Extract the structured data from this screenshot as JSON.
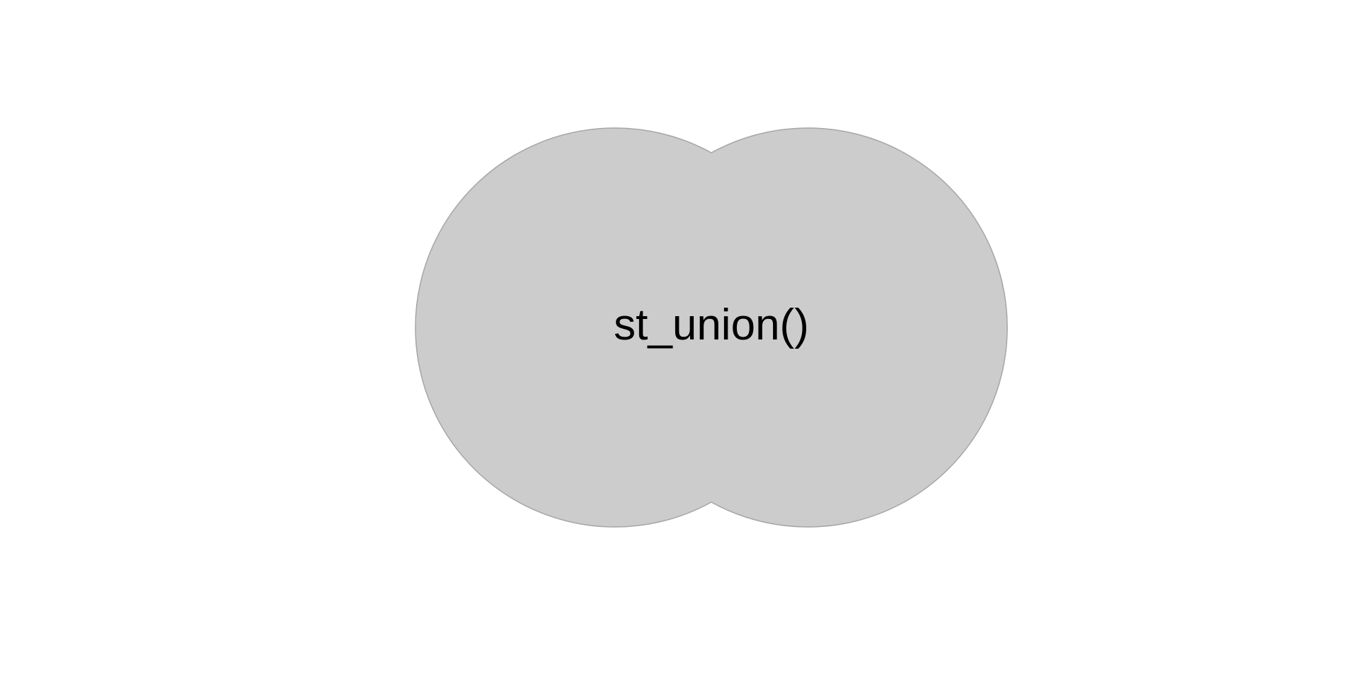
{
  "diagram": {
    "label": "st_union()",
    "shape": "union of two overlapping circles",
    "colors": {
      "fill": "#cccccc",
      "stroke": "#a6a6a6",
      "text": "#000000",
      "background": "#ffffff"
    }
  }
}
